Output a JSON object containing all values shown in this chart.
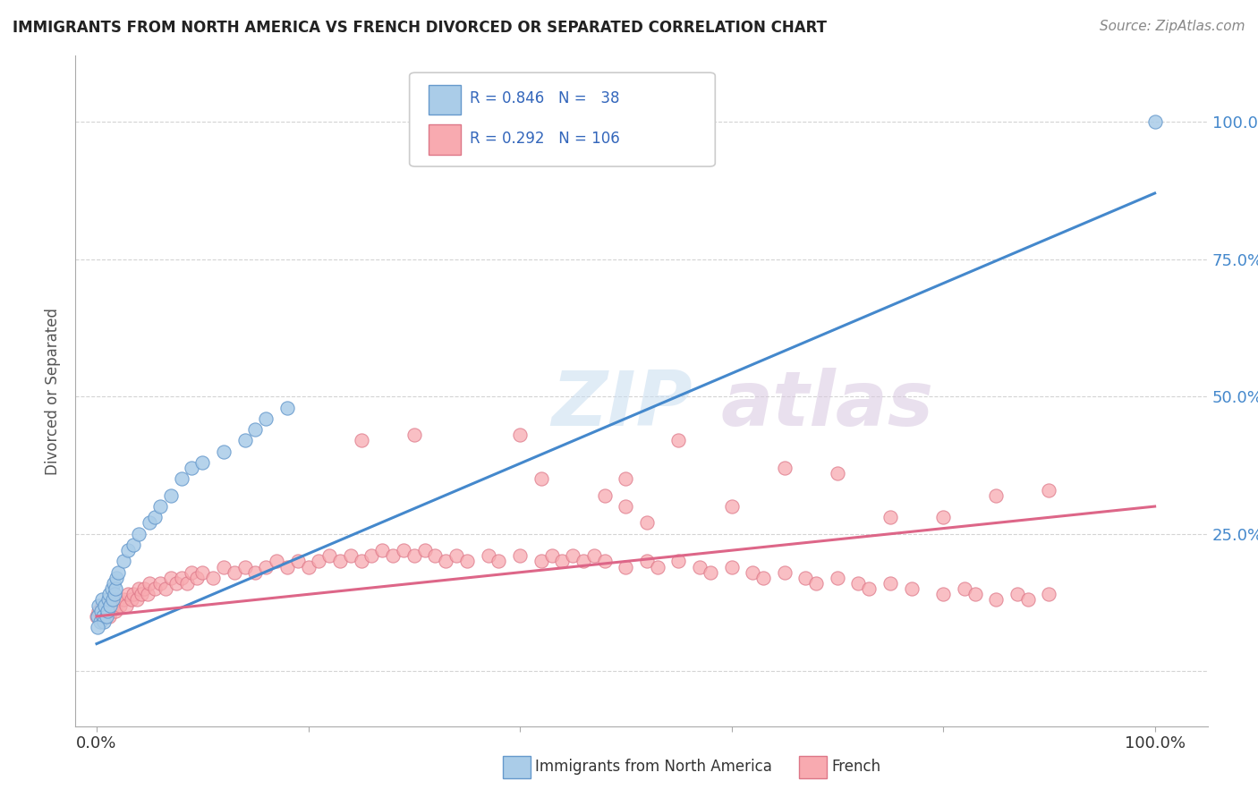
{
  "title": "IMMIGRANTS FROM NORTH AMERICA VS FRENCH DIVORCED OR SEPARATED CORRELATION CHART",
  "source": "Source: ZipAtlas.com",
  "ylabel": "Divorced or Separated",
  "legend_label1": "Immigrants from North America",
  "legend_label2": "French",
  "series1": {
    "name": "Immigrants from North America",
    "R": 0.846,
    "N": 38,
    "scatter_color": "#aacce8",
    "scatter_edge": "#6699cc",
    "line_color": "#4488cc",
    "points_x": [
      0.001,
      0.002,
      0.003,
      0.004,
      0.005,
      0.006,
      0.007,
      0.008,
      0.009,
      0.01,
      0.011,
      0.012,
      0.013,
      0.014,
      0.015,
      0.016,
      0.017,
      0.018,
      0.019,
      0.02,
      0.025,
      0.03,
      0.035,
      0.04,
      0.05,
      0.055,
      0.06,
      0.07,
      0.08,
      0.09,
      0.1,
      0.12,
      0.14,
      0.15,
      0.16,
      0.18,
      0.001,
      1.0
    ],
    "points_y": [
      0.1,
      0.12,
      0.09,
      0.11,
      0.13,
      0.1,
      0.09,
      0.12,
      0.1,
      0.11,
      0.13,
      0.14,
      0.12,
      0.15,
      0.13,
      0.16,
      0.14,
      0.15,
      0.17,
      0.18,
      0.2,
      0.22,
      0.23,
      0.25,
      0.27,
      0.28,
      0.3,
      0.32,
      0.35,
      0.37,
      0.38,
      0.4,
      0.42,
      0.44,
      0.46,
      0.48,
      0.08,
      1.0
    ],
    "trend_x": [
      0.0,
      1.0
    ],
    "trend_y": [
      0.05,
      0.87
    ]
  },
  "series2": {
    "name": "French",
    "R": 0.292,
    "N": 106,
    "scatter_color": "#f8aab0",
    "scatter_edge": "#dd7788",
    "line_color": "#dd6688",
    "points_x": [
      0.0,
      0.002,
      0.005,
      0.008,
      0.01,
      0.012,
      0.015,
      0.018,
      0.02,
      0.022,
      0.025,
      0.028,
      0.03,
      0.033,
      0.035,
      0.038,
      0.04,
      0.042,
      0.045,
      0.048,
      0.05,
      0.055,
      0.06,
      0.065,
      0.07,
      0.075,
      0.08,
      0.085,
      0.09,
      0.095,
      0.1,
      0.11,
      0.12,
      0.13,
      0.14,
      0.15,
      0.16,
      0.17,
      0.18,
      0.19,
      0.2,
      0.21,
      0.22,
      0.23,
      0.24,
      0.25,
      0.26,
      0.27,
      0.28,
      0.29,
      0.3,
      0.31,
      0.32,
      0.33,
      0.34,
      0.35,
      0.37,
      0.38,
      0.4,
      0.42,
      0.43,
      0.44,
      0.45,
      0.46,
      0.47,
      0.48,
      0.5,
      0.52,
      0.53,
      0.55,
      0.57,
      0.58,
      0.6,
      0.62,
      0.63,
      0.65,
      0.67,
      0.68,
      0.7,
      0.72,
      0.73,
      0.75,
      0.77,
      0.8,
      0.82,
      0.83,
      0.85,
      0.87,
      0.88,
      0.9,
      0.25,
      0.3,
      0.4,
      0.42,
      0.5,
      0.55,
      0.5,
      0.52,
      0.48,
      0.6,
      0.65,
      0.7,
      0.75,
      0.8,
      0.85,
      0.9
    ],
    "points_y": [
      0.1,
      0.11,
      0.12,
      0.1,
      0.11,
      0.1,
      0.12,
      0.11,
      0.13,
      0.12,
      0.13,
      0.12,
      0.14,
      0.13,
      0.14,
      0.13,
      0.15,
      0.14,
      0.15,
      0.14,
      0.16,
      0.15,
      0.16,
      0.15,
      0.17,
      0.16,
      0.17,
      0.16,
      0.18,
      0.17,
      0.18,
      0.17,
      0.19,
      0.18,
      0.19,
      0.18,
      0.19,
      0.2,
      0.19,
      0.2,
      0.19,
      0.2,
      0.21,
      0.2,
      0.21,
      0.2,
      0.21,
      0.22,
      0.21,
      0.22,
      0.21,
      0.22,
      0.21,
      0.2,
      0.21,
      0.2,
      0.21,
      0.2,
      0.21,
      0.2,
      0.21,
      0.2,
      0.21,
      0.2,
      0.21,
      0.2,
      0.19,
      0.2,
      0.19,
      0.2,
      0.19,
      0.18,
      0.19,
      0.18,
      0.17,
      0.18,
      0.17,
      0.16,
      0.17,
      0.16,
      0.15,
      0.16,
      0.15,
      0.14,
      0.15,
      0.14,
      0.13,
      0.14,
      0.13,
      0.14,
      0.42,
      0.43,
      0.43,
      0.35,
      0.35,
      0.42,
      0.3,
      0.27,
      0.32,
      0.3,
      0.37,
      0.36,
      0.28,
      0.28,
      0.32,
      0.33
    ],
    "trend_x": [
      0.0,
      1.0
    ],
    "trend_y": [
      0.1,
      0.3
    ]
  },
  "xlim": [
    -0.02,
    1.05
  ],
  "ylim": [
    -0.1,
    1.12
  ],
  "ytick_vals": [
    0.0,
    0.25,
    0.5,
    0.75,
    1.0
  ],
  "ytick_labels": [
    "",
    "25.0%",
    "50.0%",
    "75.0%",
    "100.0%"
  ],
  "xtick_vals": [
    0.0,
    0.2,
    0.4,
    0.6,
    0.8,
    1.0
  ],
  "background_color": "#ffffff",
  "grid_color": "#d0d0d0",
  "title_color": "#222222",
  "watermark_color1": "#c8ddf0",
  "watermark_color2": "#d8c8e0",
  "legend_text_color": "#3366bb",
  "legend_box_color1": "#aacce8",
  "legend_box_color2": "#f8aab0",
  "legend_box_edge1": "#6699cc",
  "legend_box_edge2": "#dd7788"
}
